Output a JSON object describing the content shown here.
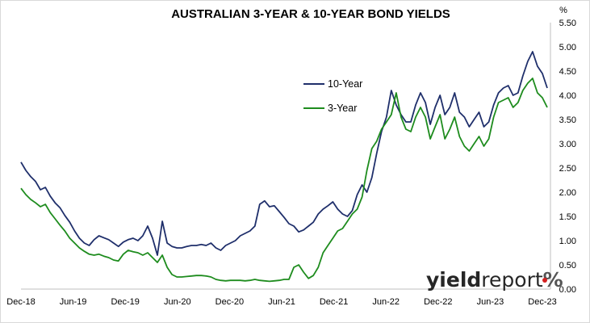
{
  "chart_data": {
    "type": "line",
    "title": "AUSTRALIAN 3-YEAR & 10-YEAR BOND YIELDS",
    "yunit": "%",
    "ylim": [
      0,
      5.5
    ],
    "y_ticks": [
      "5.50",
      "5.00",
      "4.50",
      "4.00",
      "3.50",
      "3.00",
      "2.50",
      "2.00",
      "1.50",
      "1.00",
      "0.50",
      "0.00"
    ],
    "x_ticks": [
      "Dec-18",
      "Jun-19",
      "Dec-19",
      "Jun-20",
      "Dec-20",
      "Jun-21",
      "Dec-21",
      "Jun-22",
      "Dec-22",
      "Jun-23",
      "Dec-23"
    ],
    "grid": false,
    "legend_position": "upper-middle-right",
    "series": [
      {
        "name": "10-Year",
        "color": "#1f2f6b",
        "values": [
          2.62,
          2.45,
          2.32,
          2.22,
          2.05,
          2.1,
          1.92,
          1.78,
          1.68,
          1.52,
          1.38,
          1.2,
          1.05,
          0.95,
          0.9,
          1.02,
          1.1,
          1.06,
          1.02,
          0.95,
          0.88,
          0.97,
          1.02,
          1.05,
          1.0,
          1.1,
          1.3,
          1.05,
          0.7,
          1.4,
          0.95,
          0.88,
          0.85,
          0.85,
          0.88,
          0.9,
          0.9,
          0.92,
          0.9,
          0.95,
          0.85,
          0.8,
          0.9,
          0.95,
          1.0,
          1.1,
          1.15,
          1.2,
          1.3,
          1.75,
          1.82,
          1.7,
          1.72,
          1.6,
          1.48,
          1.35,
          1.3,
          1.18,
          1.22,
          1.3,
          1.38,
          1.55,
          1.65,
          1.72,
          1.8,
          1.65,
          1.55,
          1.5,
          1.62,
          1.95,
          2.15,
          2.0,
          2.3,
          2.8,
          3.25,
          3.55,
          4.1,
          3.8,
          3.6,
          3.45,
          3.45,
          3.8,
          4.05,
          3.85,
          3.4,
          3.75,
          4.0,
          3.6,
          3.75,
          4.05,
          3.65,
          3.55,
          3.35,
          3.5,
          3.65,
          3.35,
          3.45,
          3.8,
          4.05,
          4.15,
          4.2,
          4.0,
          4.05,
          4.4,
          4.7,
          4.9,
          4.6,
          4.45,
          4.15
        ]
      },
      {
        "name": "3-Year",
        "color": "#1e8c1e",
        "values": [
          2.08,
          1.95,
          1.85,
          1.78,
          1.7,
          1.75,
          1.58,
          1.45,
          1.32,
          1.2,
          1.05,
          0.95,
          0.85,
          0.78,
          0.72,
          0.7,
          0.72,
          0.68,
          0.65,
          0.6,
          0.58,
          0.72,
          0.8,
          0.77,
          0.75,
          0.7,
          0.75,
          0.65,
          0.55,
          0.7,
          0.45,
          0.3,
          0.25,
          0.25,
          0.26,
          0.27,
          0.28,
          0.28,
          0.27,
          0.25,
          0.2,
          0.18,
          0.17,
          0.18,
          0.18,
          0.18,
          0.17,
          0.18,
          0.2,
          0.18,
          0.17,
          0.16,
          0.17,
          0.18,
          0.2,
          0.2,
          0.45,
          0.5,
          0.35,
          0.22,
          0.28,
          0.45,
          0.75,
          0.9,
          1.05,
          1.2,
          1.25,
          1.4,
          1.55,
          1.65,
          1.9,
          2.45,
          2.9,
          3.05,
          3.3,
          3.45,
          3.6,
          4.05,
          3.55,
          3.3,
          3.25,
          3.55,
          3.75,
          3.55,
          3.1,
          3.35,
          3.6,
          3.1,
          3.3,
          3.55,
          3.15,
          2.95,
          2.85,
          3.0,
          3.15,
          2.95,
          3.1,
          3.55,
          3.85,
          3.9,
          3.95,
          3.75,
          3.85,
          4.1,
          4.25,
          4.35,
          4.05,
          3.95,
          3.75
        ]
      }
    ]
  },
  "legend": [
    {
      "label": "10-Year",
      "color": "#1f2f6b"
    },
    {
      "label": "3-Year",
      "color": "#1e8c1e"
    }
  ],
  "watermark": {
    "part1": "yield",
    "part2": "report",
    "part3": "%",
    "accent": "#d42020"
  }
}
